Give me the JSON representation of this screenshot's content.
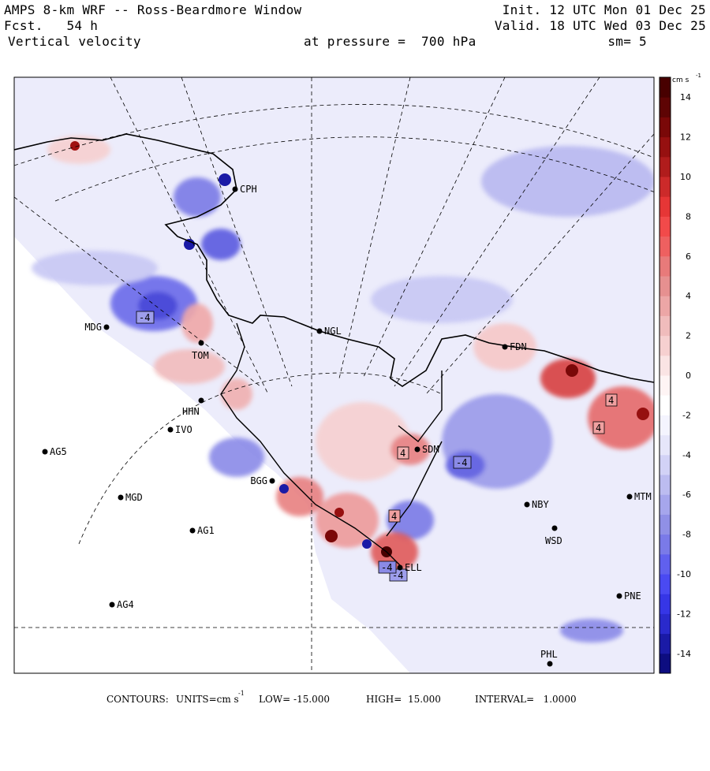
{
  "header": {
    "title": "AMPS 8-km WRF -- Ross-Beardmore Window",
    "forecast": "Fcst.   54 h",
    "field": "Vertical velocity",
    "init": "Init. 12 UTC Mon 01 Dec 25",
    "valid": "Valid. 18 UTC Wed 03 Dec 25",
    "pressure": "at pressure =  700 hPa",
    "smoothing": "sm= 5"
  },
  "colorbar": {
    "unit": "cm s",
    "unit_exp": "-1",
    "ticks": [
      "14",
      "12",
      "10",
      "8",
      "6",
      "4",
      "2",
      "0",
      "-2",
      "-4",
      "-6",
      "-8",
      "-10",
      "-12",
      "-14"
    ],
    "levels": [
      "-15",
      "15"
    ],
    "colors": [
      "#0d0d80",
      "#1a1aa6",
      "#2a2acc",
      "#3636e6",
      "#4a4af2",
      "#6060ee",
      "#7a7ae8",
      "#9090e6",
      "#a6a6ec",
      "#bcbcf0",
      "#d2d2f6",
      "#e6e6fa",
      "#f4f4fe",
      "#ffffff",
      "#fef4f4",
      "#fae4e4",
      "#f6d0d0",
      "#f0bcbc",
      "#eca6a6",
      "#e69090",
      "#e87a7a",
      "#ee6060",
      "#f24a4a",
      "#e63636",
      "#cc2a2a",
      "#b01c1c",
      "#961010",
      "#7a0808",
      "#5e0404",
      "#480000"
    ]
  },
  "stations": [
    {
      "id": "CPH",
      "label": "CPH"
    },
    {
      "id": "MDG",
      "label": "MDG"
    },
    {
      "id": "TOM",
      "label": "TOM"
    },
    {
      "id": "NGL",
      "label": "NGL"
    },
    {
      "id": "FDN",
      "label": "FDN"
    },
    {
      "id": "HHN",
      "label": "HHN"
    },
    {
      "id": "IVO",
      "label": "IVO"
    },
    {
      "id": "AG5",
      "label": "AG5"
    },
    {
      "id": "SDM",
      "label": "SDM"
    },
    {
      "id": "MGD",
      "label": "MGD"
    },
    {
      "id": "BGG",
      "label": "BGG"
    },
    {
      "id": "NBY",
      "label": "NBY"
    },
    {
      "id": "MTM",
      "label": "MTM"
    },
    {
      "id": "AG1",
      "label": "AG1"
    },
    {
      "id": "WSD",
      "label": "WSD"
    },
    {
      "id": "ELL",
      "label": "ELL"
    },
    {
      "id": "AG4",
      "label": "AG4"
    },
    {
      "id": "PNE",
      "label": "PNE"
    },
    {
      "id": "PHL",
      "label": "PHL"
    }
  ],
  "box_labels": [
    "-4",
    "4",
    "-4",
    "4",
    "-4",
    "4",
    "4",
    "-4"
  ],
  "footer": {
    "contours": "CONTOURS:",
    "units_label": "UNITS=cm s",
    "units_exp": "-1",
    "low": "LOW= -15.000",
    "high": "HIGH=  15.000",
    "interval": "INTERVAL=   1.0000"
  }
}
